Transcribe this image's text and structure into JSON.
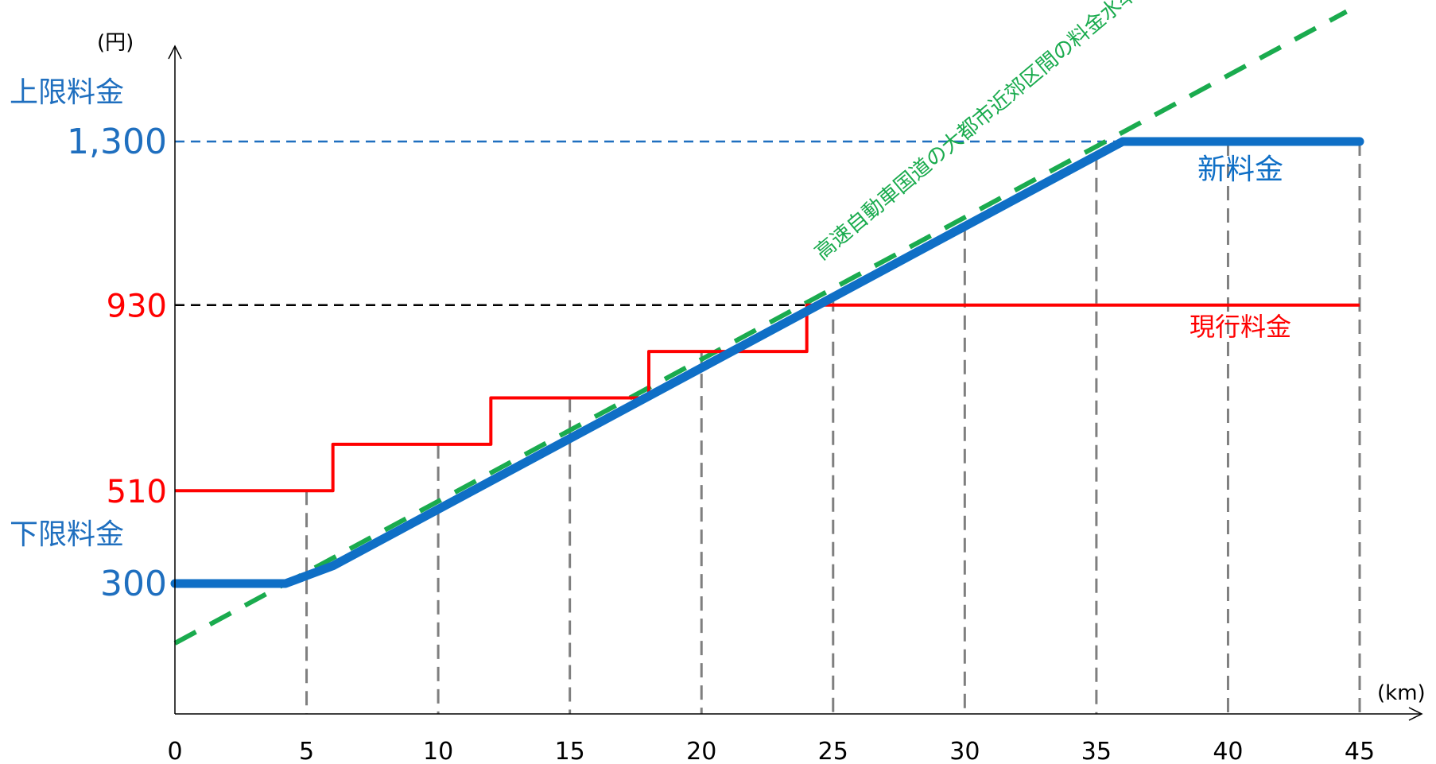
{
  "chart_data": {
    "type": "line",
    "x_unit": "(km)",
    "y_unit": "(円)",
    "xlim": [
      0,
      45
    ],
    "x_ticks": [
      0,
      5,
      10,
      15,
      20,
      25,
      30,
      35,
      40,
      45
    ],
    "y_marks": [
      {
        "value": 1300,
        "label": "1,300",
        "caption": "上限料金",
        "color": "#1f6fbf",
        "line": "dashed"
      },
      {
        "value": 930,
        "label": "930",
        "caption": "",
        "color": "#ff0000",
        "line": "dashed"
      },
      {
        "value": 510,
        "label": "510",
        "caption": "",
        "color": "#ff0000",
        "line": ""
      },
      {
        "value": 300,
        "label": "300",
        "caption": "下限料金",
        "color": "#1f6fbf",
        "line": ""
      }
    ],
    "series": [
      {
        "name": "新料金",
        "color": "#0f6fc6",
        "style": "solid-thick",
        "x": [
          0,
          4.2,
          6,
          36,
          45
        ],
        "y": [
          300,
          300,
          340,
          1300,
          1300
        ]
      },
      {
        "name": "現行料金",
        "color": "#ff0000",
        "style": "step",
        "x": [
          0,
          6,
          6,
          12,
          12,
          18,
          18,
          24,
          24,
          45
        ],
        "y": [
          510,
          510,
          615,
          615,
          720,
          720,
          825,
          825,
          930,
          930
        ]
      },
      {
        "name": "高速自動車国道の大都市近郊区間の料金水準",
        "color": "#1aab4e",
        "style": "dashed",
        "x": [
          0,
          45
        ],
        "y": [
          165,
          1610
        ]
      }
    ],
    "grid": "vertical dashed guides at x ticks 5–45",
    "legend": "inline labels on chart"
  }
}
